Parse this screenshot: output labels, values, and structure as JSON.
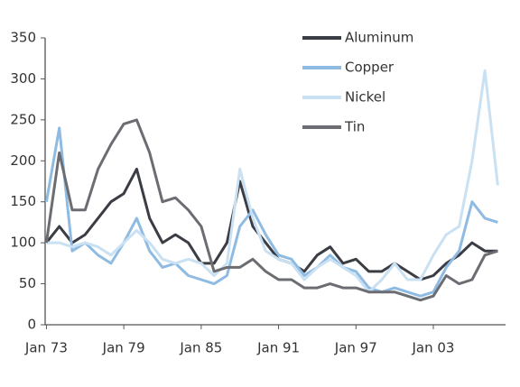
{
  "chart_data": {
    "type": "line",
    "x": [
      1973,
      1974,
      1975,
      1976,
      1977,
      1978,
      1979,
      1980,
      1981,
      1982,
      1983,
      1984,
      1985,
      1986,
      1987,
      1988,
      1989,
      1990,
      1991,
      1992,
      1993,
      1994,
      1995,
      1996,
      1997,
      1998,
      1999,
      2000,
      2001,
      2002,
      2003,
      2004,
      2005,
      2006,
      2007,
      2008
    ],
    "series": [
      {
        "name": "Aluminum",
        "color": "#3a3d44",
        "values": [
          100,
          120,
          100,
          110,
          130,
          150,
          160,
          190,
          130,
          100,
          110,
          100,
          75,
          75,
          100,
          175,
          120,
          100,
          80,
          75,
          65,
          85,
          95,
          75,
          80,
          65,
          65,
          75,
          65,
          55,
          60,
          75,
          85,
          100,
          90,
          90
        ]
      },
      {
        "name": "Copper",
        "color": "#8fbbe3",
        "values": [
          150,
          240,
          90,
          100,
          85,
          75,
          100,
          130,
          90,
          70,
          75,
          60,
          55,
          50,
          60,
          120,
          140,
          110,
          85,
          80,
          60,
          70,
          85,
          70,
          65,
          45,
          40,
          45,
          40,
          35,
          40,
          70,
          90,
          150,
          130,
          125
        ]
      },
      {
        "name": "Nickel",
        "color": "#c9e1f2",
        "values": [
          100,
          100,
          95,
          100,
          95,
          85,
          100,
          115,
          100,
          80,
          75,
          80,
          75,
          60,
          75,
          190,
          130,
          90,
          80,
          75,
          55,
          70,
          80,
          70,
          60,
          40,
          55,
          75,
          55,
          55,
          85,
          110,
          120,
          200,
          310,
          170
        ]
      },
      {
        "name": "Tin",
        "color": "#6b6d72",
        "values": [
          100,
          210,
          140,
          140,
          190,
          220,
          245,
          250,
          210,
          150,
          155,
          140,
          120,
          65,
          70,
          70,
          80,
          65,
          55,
          55,
          45,
          45,
          50,
          45,
          45,
          40,
          40,
          40,
          35,
          30,
          35,
          60,
          50,
          55,
          85,
          90
        ]
      }
    ],
    "xlim": [
      1972.9,
      2008.6
    ],
    "xticks": [
      {
        "value": 1973,
        "label": "Jan 73"
      },
      {
        "value": 1979,
        "label": "Jan 79"
      },
      {
        "value": 1985,
        "label": "Jan 85"
      },
      {
        "value": 1991,
        "label": "Jan 91"
      },
      {
        "value": 1997,
        "label": "Jan 97"
      },
      {
        "value": 2003,
        "label": "Jan 03"
      }
    ],
    "ylim": [
      0,
      350
    ],
    "yticks": [
      0,
      50,
      100,
      150,
      200,
      250,
      300,
      350
    ],
    "grid": false,
    "legend": "upper-right"
  }
}
